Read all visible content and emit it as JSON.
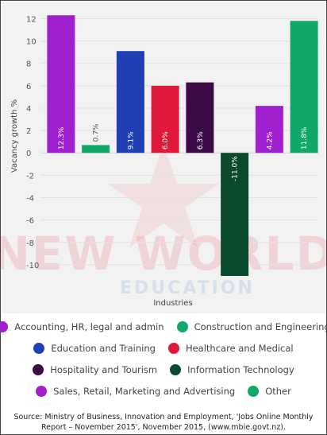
{
  "chart_data": {
    "type": "bar",
    "ylabel": "Vacancy growth %",
    "xlabel": "Industries",
    "ylim": [
      -11,
      12.5
    ],
    "yticks": [
      12,
      10,
      8,
      6,
      4,
      2,
      0,
      -2,
      -4,
      -6,
      -8,
      -10
    ],
    "grid": true,
    "legend_position": "bottom",
    "categories": [
      "Accounting, HR, legal and admin",
      "Construction and Engineering",
      "Education and Training",
      "Healthcare and Medical",
      "Hospitality and Tourism",
      "Information Technology",
      "Sales, Retail, Marketing and Advertising",
      "Other"
    ],
    "values": [
      12.3,
      0.7,
      9.1,
      6.0,
      6.3,
      -11.0,
      4.2,
      11.8
    ],
    "value_labels": [
      "12.3%",
      "0.7%",
      "9.1%",
      "6.0%",
      "6.3%",
      "-11.0%",
      "4.2%",
      "11.8%"
    ],
    "colors": [
      "#a020d0",
      "#12a86a",
      "#1f3fb3",
      "#e0183c",
      "#3c0a45",
      "#0a4a2c",
      "#a020d0",
      "#12a86a"
    ]
  },
  "legend": {
    "rows": [
      [
        {
          "label": "Accounting, HR, legal and admin",
          "color": "#a020d0"
        },
        {
          "label": "Construction and Engineering",
          "color": "#12a86a"
        }
      ],
      [
        {
          "label": "Education and Training",
          "color": "#1f3fb3"
        },
        {
          "label": "Healthcare and Medical",
          "color": "#e0183c"
        }
      ],
      [
        {
          "label": "Hospitality and Tourism",
          "color": "#3c0a45"
        },
        {
          "label": "Information Technology",
          "color": "#0a4a2c"
        }
      ],
      [
        {
          "label": "Sales, Retail, Marketing and Advertising",
          "color": "#a020d0"
        },
        {
          "label": "Other",
          "color": "#12a86a"
        }
      ]
    ]
  },
  "watermark": {
    "line1": "NEW WORLD",
    "line2": "EDUCATION"
  },
  "source": "Source: Ministry of Business, Innovation and Employment, 'Jobs Online Monthly Report – November 2015', November 2015, (www.mbie.govt.nz)."
}
